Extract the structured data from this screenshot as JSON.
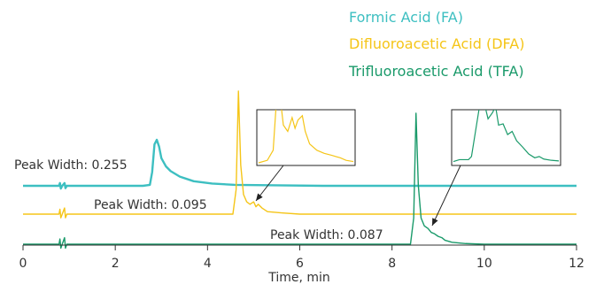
{
  "chart_data": {
    "type": "line",
    "title": "",
    "xlabel": "Time, min",
    "ylabel": "",
    "xlim": [
      0,
      12
    ],
    "x_ticks": [
      "0",
      "2",
      "4",
      "6",
      "8",
      "10",
      "12"
    ],
    "grid": false,
    "legend_position": "top-right",
    "series": [
      {
        "name": "Formic Acid (FA)",
        "color": "#3dbfc1",
        "annotation": "Peak Width: 0.255",
        "points": [
          [
            0,
            0
          ],
          [
            0.78,
            0
          ],
          [
            0.8,
            0.06
          ],
          [
            0.82,
            -0.06
          ],
          [
            0.85,
            0
          ],
          [
            0.9,
            0.06
          ],
          [
            0.92,
            -0.05
          ],
          [
            0.95,
            0
          ],
          [
            2.6,
            0
          ],
          [
            2.75,
            0.02
          ],
          [
            2.8,
            0.3
          ],
          [
            2.85,
            0.9
          ],
          [
            2.9,
            1.0
          ],
          [
            2.95,
            0.85
          ],
          [
            3.0,
            0.6
          ],
          [
            3.1,
            0.42
          ],
          [
            3.2,
            0.32
          ],
          [
            3.4,
            0.2
          ],
          [
            3.7,
            0.1
          ],
          [
            4.1,
            0.05
          ],
          [
            4.6,
            0.02
          ],
          [
            5.5,
            0.01
          ],
          [
            6.5,
            0
          ],
          [
            12,
            0
          ]
        ]
      },
      {
        "name": "Difluoroacetic Acid (DFA)",
        "color": "#f5c518",
        "annotation": "Peak Width: 0.095",
        "points": [
          [
            0,
            0
          ],
          [
            0.78,
            0
          ],
          [
            0.8,
            0.04
          ],
          [
            0.82,
            -0.03
          ],
          [
            0.85,
            0
          ],
          [
            0.9,
            0.05
          ],
          [
            0.92,
            -0.03
          ],
          [
            0.95,
            0
          ],
          [
            4.55,
            0
          ],
          [
            4.62,
            0.2
          ],
          [
            4.67,
            1.0
          ],
          [
            4.72,
            0.4
          ],
          [
            4.78,
            0.16
          ],
          [
            4.85,
            0.1
          ],
          [
            4.92,
            0.08
          ],
          [
            5.0,
            0.1
          ],
          [
            5.05,
            0.06
          ],
          [
            5.1,
            0.08
          ],
          [
            5.18,
            0.05
          ],
          [
            5.3,
            0.02
          ],
          [
            5.6,
            0.01
          ],
          [
            6,
            0
          ],
          [
            12,
            0
          ]
        ]
      },
      {
        "name": "Trifluoroacetic Acid (TFA)",
        "color": "#1a9a6a",
        "annotation": "Peak Width: 0.087",
        "points": [
          [
            0,
            0
          ],
          [
            0.78,
            0
          ],
          [
            0.8,
            0.04
          ],
          [
            0.82,
            -0.03
          ],
          [
            0.85,
            0
          ],
          [
            0.9,
            0.05
          ],
          [
            0.92,
            -0.03
          ],
          [
            0.95,
            0
          ],
          [
            8.4,
            0
          ],
          [
            8.47,
            0.2
          ],
          [
            8.52,
            1.0
          ],
          [
            8.57,
            0.45
          ],
          [
            8.63,
            0.2
          ],
          [
            8.7,
            0.14
          ],
          [
            8.78,
            0.12
          ],
          [
            8.85,
            0.09
          ],
          [
            8.92,
            0.08
          ],
          [
            9.0,
            0.06
          ],
          [
            9.08,
            0.05
          ],
          [
            9.15,
            0.03
          ],
          [
            9.3,
            0.015
          ],
          [
            9.6,
            0.005
          ],
          [
            10,
            0
          ],
          [
            12,
            0
          ]
        ]
      }
    ],
    "insets": [
      {
        "series": "Difluoroacetic Acid (DFA)",
        "x_range": [
          4.8,
          5.45
        ],
        "points": [
          [
            4.8,
            0
          ],
          [
            4.86,
            0.04
          ],
          [
            4.9,
            0.2
          ],
          [
            4.92,
            0.9
          ],
          [
            4.94,
            1.0
          ],
          [
            4.95,
            1.0
          ],
          [
            4.97,
            0.6
          ],
          [
            5.0,
            0.5
          ],
          [
            5.03,
            0.72
          ],
          [
            5.05,
            0.55
          ],
          [
            5.07,
            0.68
          ],
          [
            5.1,
            0.75
          ],
          [
            5.12,
            0.5
          ],
          [
            5.15,
            0.3
          ],
          [
            5.2,
            0.2
          ],
          [
            5.25,
            0.15
          ],
          [
            5.3,
            0.12
          ],
          [
            5.36,
            0.08
          ],
          [
            5.4,
            0.04
          ],
          [
            5.45,
            0.02
          ]
        ]
      },
      {
        "series": "Trifluoroacetic Acid (TFA)",
        "x_range": [
          8.6,
          9.3
        ],
        "points": [
          [
            8.6,
            0.02
          ],
          [
            8.64,
            0.05
          ],
          [
            8.7,
            0.05
          ],
          [
            8.72,
            0.1
          ],
          [
            8.75,
            0.55
          ],
          [
            8.78,
            1.0
          ],
          [
            8.8,
            1.0
          ],
          [
            8.83,
            0.7
          ],
          [
            8.86,
            0.8
          ],
          [
            8.88,
            0.9
          ],
          [
            8.9,
            0.6
          ],
          [
            8.93,
            0.62
          ],
          [
            8.96,
            0.45
          ],
          [
            8.99,
            0.5
          ],
          [
            9.02,
            0.35
          ],
          [
            9.06,
            0.25
          ],
          [
            9.1,
            0.14
          ],
          [
            9.14,
            0.08
          ],
          [
            9.17,
            0.1
          ],
          [
            9.2,
            0.06
          ],
          [
            9.25,
            0.04
          ],
          [
            9.3,
            0.03
          ]
        ]
      }
    ]
  }
}
